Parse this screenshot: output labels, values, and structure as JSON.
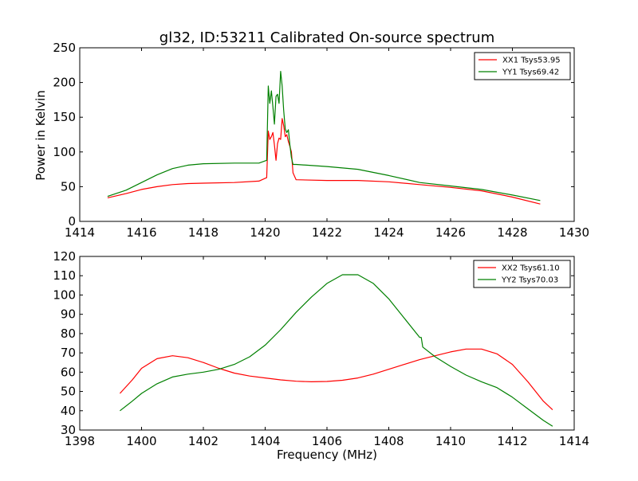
{
  "figure": {
    "title": "gl32, ID:53211 Calibrated On-source spectrum",
    "xlabel": "Frequency (MHz)",
    "ylabel": "Power in Kelvin"
  },
  "chart_data": [
    {
      "type": "line",
      "title": "gl32, ID:53211 Calibrated On-source spectrum",
      "xlabel": "",
      "ylabel": "Power in Kelvin",
      "xlim": [
        1414,
        1430
      ],
      "ylim": [
        0,
        250
      ],
      "xticks": [
        1414,
        1416,
        1418,
        1420,
        1422,
        1424,
        1426,
        1428,
        1430
      ],
      "yticks": [
        0,
        50,
        100,
        150,
        200,
        250
      ],
      "grid": false,
      "legend_position": "top-right",
      "series": [
        {
          "name": "XX1 Tsys53.95",
          "color": "#ff0000",
          "points": [
            [
              1414.9,
              34
            ],
            [
              1415.5,
              40
            ],
            [
              1416,
              46
            ],
            [
              1416.5,
              50
            ],
            [
              1417,
              53
            ],
            [
              1417.5,
              54.5
            ],
            [
              1418,
              55
            ],
            [
              1419,
              56
            ],
            [
              1419.8,
              58
            ],
            [
              1420.05,
              63
            ],
            [
              1420.1,
              130
            ],
            [
              1420.15,
              118
            ],
            [
              1420.2,
              122
            ],
            [
              1420.25,
              128
            ],
            [
              1420.3,
              110
            ],
            [
              1420.35,
              88
            ],
            [
              1420.4,
              112
            ],
            [
              1420.45,
              120
            ],
            [
              1420.5,
              118
            ],
            [
              1420.55,
              148
            ],
            [
              1420.6,
              138
            ],
            [
              1420.65,
              122
            ],
            [
              1420.7,
              125
            ],
            [
              1420.75,
              115
            ],
            [
              1420.8,
              108
            ],
            [
              1420.85,
              100
            ],
            [
              1420.9,
              70
            ],
            [
              1421,
              60
            ],
            [
              1422,
              59
            ],
            [
              1423,
              59
            ],
            [
              1424,
              57
            ],
            [
              1425,
              53
            ],
            [
              1426,
              49
            ],
            [
              1427,
              44
            ],
            [
              1428,
              35
            ],
            [
              1428.9,
              25
            ]
          ]
        },
        {
          "name": "YY1 Tsys69.42",
          "color": "#008000",
          "points": [
            [
              1414.9,
              36
            ],
            [
              1415.5,
              45
            ],
            [
              1416,
              56
            ],
            [
              1416.5,
              67
            ],
            [
              1417,
              76
            ],
            [
              1417.5,
              81
            ],
            [
              1418,
              83
            ],
            [
              1419,
              84
            ],
            [
              1419.8,
              84
            ],
            [
              1420.05,
              88
            ],
            [
              1420.1,
              195
            ],
            [
              1420.15,
              170
            ],
            [
              1420.2,
              188
            ],
            [
              1420.25,
              165
            ],
            [
              1420.3,
              140
            ],
            [
              1420.35,
              180
            ],
            [
              1420.4,
              183
            ],
            [
              1420.45,
              170
            ],
            [
              1420.5,
              216
            ],
            [
              1420.55,
              195
            ],
            [
              1420.6,
              160
            ],
            [
              1420.65,
              133
            ],
            [
              1420.7,
              128
            ],
            [
              1420.75,
              132
            ],
            [
              1420.8,
              110
            ],
            [
              1420.85,
              92
            ],
            [
              1420.9,
              82
            ],
            [
              1421,
              82
            ],
            [
              1422,
              79
            ],
            [
              1423,
              75
            ],
            [
              1424,
              66
            ],
            [
              1425,
              56
            ],
            [
              1426,
              51
            ],
            [
              1427,
              46
            ],
            [
              1428,
              38
            ],
            [
              1428.9,
              30
            ]
          ]
        }
      ]
    },
    {
      "type": "line",
      "title": "",
      "xlabel": "Frequency (MHz)",
      "ylabel": "",
      "xlim": [
        1398,
        1414
      ],
      "ylim": [
        30,
        120
      ],
      "xticks": [
        1398,
        1400,
        1402,
        1404,
        1406,
        1408,
        1410,
        1412,
        1414
      ],
      "yticks": [
        30,
        40,
        50,
        60,
        70,
        80,
        90,
        100,
        110,
        120
      ],
      "grid": false,
      "legend_position": "top-right",
      "series": [
        {
          "name": "XX2 Tsys61.10",
          "color": "#ff0000",
          "points": [
            [
              1399.3,
              49
            ],
            [
              1399.7,
              56
            ],
            [
              1400,
              62
            ],
            [
              1400.5,
              67
            ],
            [
              1401,
              68.5
            ],
            [
              1401.5,
              67.5
            ],
            [
              1402,
              65
            ],
            [
              1402.5,
              62
            ],
            [
              1403,
              59.5
            ],
            [
              1403.5,
              58
            ],
            [
              1404,
              57
            ],
            [
              1404.5,
              56
            ],
            [
              1405,
              55.3
            ],
            [
              1405.5,
              55
            ],
            [
              1406,
              55.2
            ],
            [
              1406.5,
              55.8
            ],
            [
              1407,
              57
            ],
            [
              1407.5,
              59
            ],
            [
              1408,
              61.5
            ],
            [
              1408.5,
              64
            ],
            [
              1409,
              66.5
            ],
            [
              1409.5,
              68.5
            ],
            [
              1410,
              70.5
            ],
            [
              1410.5,
              72
            ],
            [
              1411,
              72
            ],
            [
              1411.5,
              69.5
            ],
            [
              1412,
              64
            ],
            [
              1412.5,
              55
            ],
            [
              1413,
              45
            ],
            [
              1413.3,
              40.5
            ]
          ]
        },
        {
          "name": "YY2 Tsys70.03",
          "color": "#008000",
          "points": [
            [
              1399.3,
              40
            ],
            [
              1399.7,
              45
            ],
            [
              1400,
              49
            ],
            [
              1400.5,
              54
            ],
            [
              1401,
              57.5
            ],
            [
              1401.5,
              59
            ],
            [
              1402,
              60
            ],
            [
              1402.5,
              61.5
            ],
            [
              1403,
              64
            ],
            [
              1403.5,
              68
            ],
            [
              1404,
              74
            ],
            [
              1404.5,
              82
            ],
            [
              1405,
              91
            ],
            [
              1405.5,
              99
            ],
            [
              1406,
              106
            ],
            [
              1406.5,
              110.5
            ],
            [
              1407,
              110.5
            ],
            [
              1407.5,
              106
            ],
            [
              1408,
              98
            ],
            [
              1408.5,
              88
            ],
            [
              1409,
              78
            ],
            [
              1409.05,
              78
            ],
            [
              1409.1,
              73
            ],
            [
              1409.5,
              68
            ],
            [
              1410,
              63
            ],
            [
              1410.5,
              58.5
            ],
            [
              1411,
              55
            ],
            [
              1411.5,
              52
            ],
            [
              1412,
              47
            ],
            [
              1412.5,
              41
            ],
            [
              1413,
              35
            ],
            [
              1413.3,
              32
            ]
          ]
        }
      ]
    }
  ]
}
